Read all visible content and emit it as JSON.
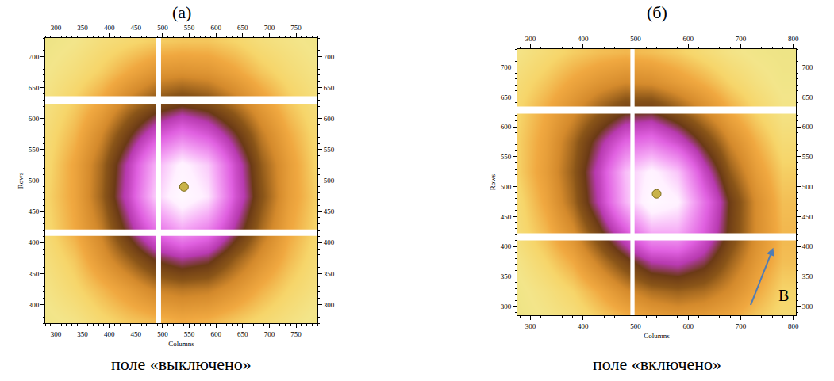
{
  "chart_data": [
    {
      "type": "heatmap",
      "title": "(a)",
      "caption": "поле «выключено»",
      "xlabel": "Columns",
      "ylabel": "Rows",
      "xlim": [
        280,
        790
      ],
      "ylim": [
        270,
        730
      ],
      "xticks": [
        300,
        350,
        400,
        450,
        500,
        550,
        600,
        650,
        700,
        750
      ],
      "yticks": [
        300,
        350,
        400,
        450,
        500,
        550,
        600,
        650,
        700
      ],
      "x": [
        285,
        335,
        385,
        435,
        485,
        535,
        585,
        635,
        685,
        735,
        785
      ],
      "y": [
        275,
        325,
        375,
        425,
        475,
        525,
        575,
        625,
        675,
        725
      ],
      "z": [
        [
          7,
          9,
          13,
          16,
          18,
          20,
          19,
          16,
          13,
          10,
          7
        ],
        [
          9,
          13,
          18,
          23,
          29,
          31,
          30,
          25,
          19,
          14,
          10
        ],
        [
          11,
          16,
          25,
          34,
          44,
          49,
          46,
          35,
          26,
          18,
          12
        ],
        [
          13,
          20,
          30,
          46,
          64,
          76,
          68,
          49,
          33,
          21,
          14
        ],
        [
          14,
          21,
          34,
          53,
          81,
          95,
          86,
          57,
          37,
          23,
          15
        ],
        [
          13,
          21,
          33,
          51,
          76,
          90,
          81,
          55,
          35,
          23,
          14
        ],
        [
          12,
          18,
          28,
          41,
          55,
          64,
          57,
          44,
          30,
          20,
          13
        ],
        [
          10,
          15,
          21,
          30,
          37,
          41,
          38,
          31,
          23,
          16,
          11
        ],
        [
          8,
          11,
          15,
          20,
          25,
          26,
          25,
          21,
          16,
          12,
          9
        ],
        [
          6,
          8,
          11,
          13,
          15,
          16,
          16,
          14,
          11,
          9,
          7
        ]
      ],
      "color_range": [
        0,
        100
      ],
      "beamstop": {
        "x": 540,
        "y": 490
      },
      "masked_columns": [
        [
          487,
          497
        ]
      ],
      "masked_rows": [
        [
          411,
          421
        ],
        [
          624,
          636
        ]
      ]
    },
    {
      "type": "heatmap",
      "title": "(б)",
      "caption": "поле «включено»",
      "xlabel": "Columns",
      "ylabel": "Rows",
      "xlim": [
        275,
        805
      ],
      "ylim": [
        285,
        730
      ],
      "xticks": [
        300,
        400,
        500,
        600,
        700,
        800
      ],
      "yticks": [
        300,
        350,
        400,
        450,
        500,
        550,
        600,
        650,
        700
      ],
      "x": [
        280,
        330,
        380,
        430,
        480,
        530,
        580,
        630,
        680,
        730,
        780
      ],
      "y": [
        275,
        325,
        375,
        425,
        475,
        525,
        575,
        625,
        675,
        725
      ],
      "z": [
        [
          6,
          8,
          10,
          14,
          17,
          20,
          22,
          21,
          19,
          15,
          12
        ],
        [
          7,
          10,
          14,
          20,
          27,
          32,
          34,
          32,
          27,
          20,
          14
        ],
        [
          9,
          14,
          20,
          30,
          40,
          50,
          52,
          46,
          34,
          24,
          17
        ],
        [
          12,
          18,
          27,
          41,
          58,
          76,
          76,
          59,
          41,
          27,
          18
        ],
        [
          13,
          21,
          33,
          51,
          77,
          95,
          89,
          64,
          42,
          27,
          17
        ],
        [
          15,
          23,
          35,
          53,
          79,
          90,
          80,
          54,
          35,
          23,
          15
        ],
        [
          15,
          22,
          33,
          47,
          61,
          65,
          55,
          41,
          28,
          19,
          12
        ],
        [
          14,
          20,
          27,
          35,
          42,
          43,
          36,
          28,
          20,
          14,
          9
        ],
        [
          12,
          16,
          21,
          25,
          28,
          27,
          23,
          19,
          14,
          10,
          7
        ],
        [
          9,
          12,
          15,
          17,
          18,
          17,
          15,
          12,
          9,
          7,
          6
        ]
      ],
      "color_range": [
        0,
        100
      ],
      "beamstop": {
        "x": 540,
        "y": 488
      },
      "masked_columns": [
        [
          490,
          498
        ]
      ],
      "masked_rows": [
        [
          410,
          422
        ],
        [
          622,
          634
        ]
      ],
      "annotations": [
        {
          "text": "B",
          "x": 768,
          "y": 318,
          "arrow_from": [
            718,
            300
          ],
          "arrow_to": [
            762,
            398
          ]
        }
      ]
    }
  ]
}
